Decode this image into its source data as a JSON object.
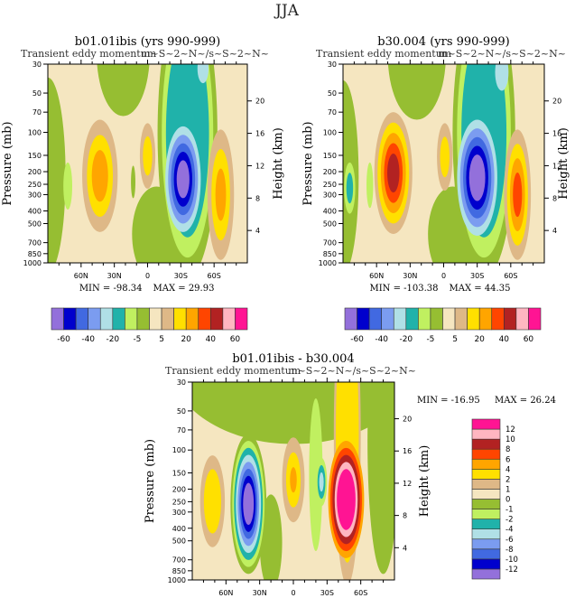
{
  "figure_title": "JJA",
  "colors": [
    "#9370DB",
    "#0000CD",
    "#4169E1",
    "#7B9CF0",
    "#B0E0E6",
    "#20B2AA",
    "#C0F060",
    "#96BE32",
    "#F5E6C0",
    "#DEB887",
    "#FFE000",
    "#FFA500",
    "#FF4500",
    "#B22222",
    "#FFB6C1",
    "#FF1493"
  ],
  "chart_data": [
    {
      "type": "contour",
      "title": "b01.01ibis (yrs 990-999)",
      "subtitle_left": "Transient eddy momentum",
      "subtitle_right": "m~S~2~N~/s~S~2~N~",
      "ylabel": "Pressure (mb)",
      "ylabel_right": "Height (km)",
      "x_ticks": [
        "60N",
        "30N",
        "0",
        "30S",
        "60S"
      ],
      "x_tick_values": [
        60,
        30,
        0,
        -30,
        -60
      ],
      "xlim": [
        90,
        -90
      ],
      "y_ticks": [
        "30",
        "50",
        "70",
        "100",
        "150",
        "200",
        "250",
        "300",
        "400",
        "500",
        "700",
        "850",
        "1000"
      ],
      "y_scale": "log",
      "ylim": [
        1000,
        30
      ],
      "y_right_ticks": [
        "4",
        "8",
        "12",
        "16",
        "20"
      ],
      "min_label": "MIN = -98.34",
      "max_label": "MAX =  29.93",
      "min": -98.34,
      "max": 29.93,
      "levels": [
        -60,
        -50,
        -40,
        -30,
        -20,
        -10,
        -5,
        0,
        5,
        10,
        20,
        30,
        40,
        50,
        60
      ],
      "colorbar_labels": [
        "-60",
        "-40",
        "-20",
        "-5",
        "5",
        "20",
        "40",
        "60"
      ],
      "colorbar_orientation": "horizontal"
    },
    {
      "type": "contour",
      "title": "b30.004 (yrs 990-999)",
      "subtitle_left": "Transient eddy momentum",
      "subtitle_right": "m~S~2~N~/s~S~2~N~",
      "ylabel": "Pressure (mb)",
      "ylabel_right": "Height (km)",
      "x_ticks": [
        "60N",
        "30N",
        "0",
        "30S",
        "60S"
      ],
      "x_tick_values": [
        60,
        30,
        0,
        -30,
        -60
      ],
      "xlim": [
        90,
        -90
      ],
      "y_ticks": [
        "30",
        "50",
        "70",
        "100",
        "150",
        "200",
        "250",
        "300",
        "400",
        "500",
        "700",
        "850",
        "1000"
      ],
      "y_scale": "log",
      "ylim": [
        1000,
        30
      ],
      "y_right_ticks": [
        "4",
        "8",
        "12",
        "16",
        "20"
      ],
      "min_label": "MIN = -103.38",
      "max_label": "MAX =  44.35",
      "min": -103.38,
      "max": 44.35,
      "levels": [
        -60,
        -50,
        -40,
        -30,
        -20,
        -10,
        -5,
        0,
        5,
        10,
        20,
        30,
        40,
        50,
        60
      ],
      "colorbar_labels": [
        "-60",
        "-40",
        "-20",
        "-5",
        "5",
        "20",
        "40",
        "60"
      ],
      "colorbar_orientation": "horizontal"
    },
    {
      "type": "contour",
      "title": "b01.01ibis - b30.004",
      "subtitle_left": "Transient eddy momentum",
      "subtitle_right": "m~S~2~N~/s~S~2~N~",
      "ylabel": "Pressure (mb)",
      "ylabel_right": "Height (km)",
      "x_ticks": [
        "60N",
        "30N",
        "0",
        "30S",
        "60S"
      ],
      "x_tick_values": [
        60,
        30,
        0,
        -30,
        -60
      ],
      "xlim": [
        90,
        -90
      ],
      "y_ticks": [
        "30",
        "50",
        "70",
        "100",
        "150",
        "200",
        "250",
        "300",
        "400",
        "500",
        "700",
        "850",
        "1000"
      ],
      "y_scale": "log",
      "ylim": [
        1000,
        30
      ],
      "y_right_ticks": [
        "4",
        "8",
        "12",
        "16",
        "20"
      ],
      "min_label": "MIN = -16.95",
      "max_label": "MAX =  26.24",
      "min": -16.95,
      "max": 26.24,
      "levels": [
        -12,
        -10,
        -8,
        -6,
        -4,
        -2,
        -1,
        0,
        1,
        2,
        4,
        6,
        8,
        10,
        12
      ],
      "colorbar_labels": [
        "-12",
        "-10",
        "-8",
        "-6",
        "-4",
        "-2",
        "-1",
        "0",
        "1",
        "2",
        "4",
        "6",
        "8",
        "10",
        "12"
      ],
      "colorbar_orientation": "vertical"
    }
  ]
}
